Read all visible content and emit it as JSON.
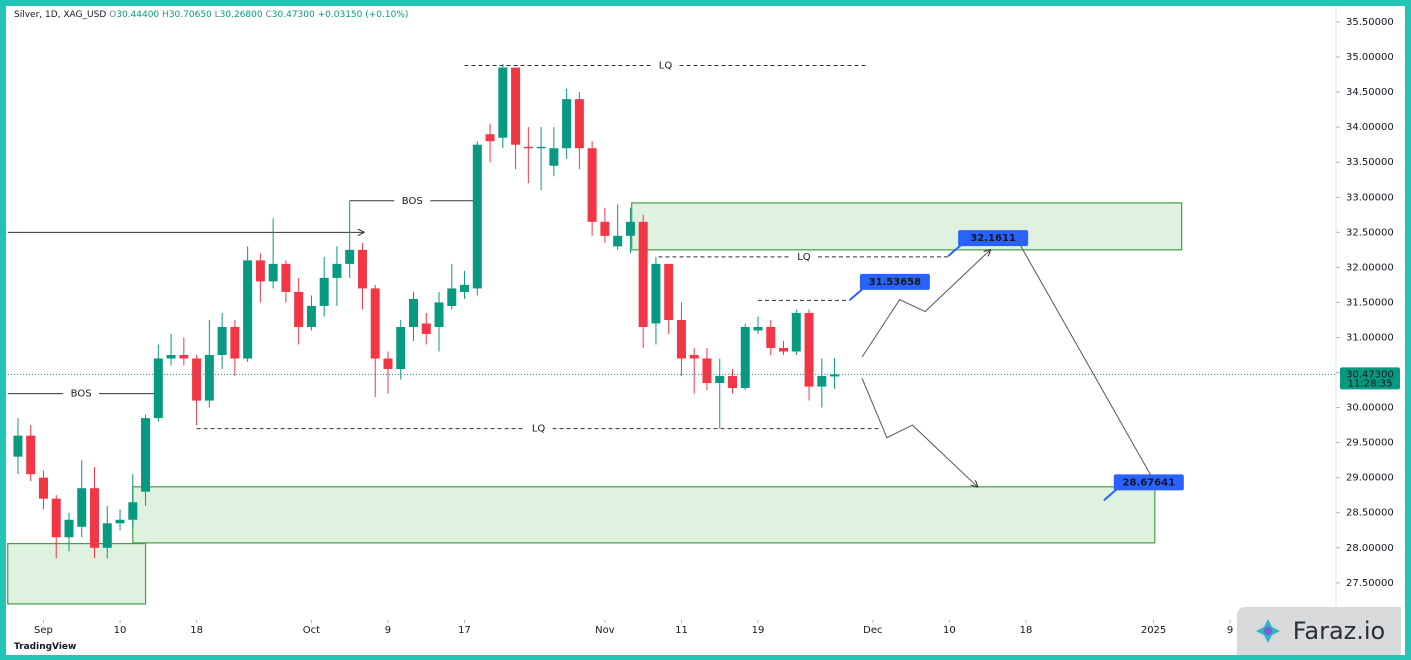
{
  "header": {
    "symbol": "Silver, 1D, XAG_USD",
    "ohlc": [
      [
        "O",
        "30.44400"
      ],
      [
        "H",
        "30.70650"
      ],
      [
        "L",
        "30.26800"
      ],
      [
        "C",
        "30.47300"
      ]
    ],
    "change": "+0.03150 (+0.10%)"
  },
  "brand": "TradingView",
  "watermark": "Faraz.io",
  "chart_data": {
    "type": "candlestick",
    "up_color": "#089981",
    "down_color": "#f23645",
    "x": [
      -8,
      -7,
      -6,
      -5,
      -4,
      -3,
      -2,
      -1,
      0,
      1,
      2,
      3,
      4,
      5,
      6,
      7,
      8,
      9,
      10,
      11,
      12,
      13,
      14,
      15,
      16,
      17,
      18,
      19,
      20,
      21,
      22,
      23,
      24,
      25,
      26,
      27,
      28,
      29,
      30,
      31,
      32,
      33,
      34,
      35,
      36,
      37,
      38,
      39,
      40,
      41,
      42,
      43,
      44,
      45,
      46,
      47,
      48,
      49,
      50,
      51,
      52,
      53,
      54,
      55,
      56
    ],
    "open": [
      29.3,
      29.6,
      29.0,
      28.7,
      28.15,
      28.3,
      28.85,
      28.0,
      28.35,
      28.4,
      28.8,
      29.85,
      30.7,
      30.75,
      30.7,
      30.1,
      30.75,
      31.15,
      30.7,
      32.1,
      31.8,
      32.05,
      31.65,
      31.15,
      31.45,
      31.85,
      32.05,
      32.25,
      31.7,
      30.7,
      30.55,
      31.15,
      31.2,
      31.15,
      31.45,
      31.65,
      31.7,
      33.9,
      33.85,
      34.85,
      33.72,
      33.7,
      33.45,
      33.7,
      34.4,
      33.7,
      32.65,
      32.3,
      32.45,
      32.65,
      31.2,
      32.05,
      31.25,
      30.75,
      30.7,
      30.35,
      30.45,
      30.28,
      31.1,
      31.15,
      30.85,
      30.8,
      31.35,
      30.3,
      30.444
    ],
    "high": [
      29.85,
      29.75,
      29.1,
      28.75,
      28.5,
      29.25,
      29.15,
      28.6,
      28.55,
      29.05,
      29.9,
      30.9,
      31.05,
      31.0,
      30.75,
      31.25,
      31.35,
      31.25,
      32.3,
      32.2,
      32.7,
      32.1,
      31.85,
      31.6,
      32.15,
      32.3,
      32.95,
      32.35,
      31.75,
      30.8,
      31.25,
      31.65,
      31.35,
      31.65,
      32.05,
      31.95,
      33.8,
      34.05,
      34.9,
      34.85,
      34.0,
      34.0,
      34.0,
      34.55,
      34.5,
      33.8,
      32.85,
      32.9,
      32.85,
      32.75,
      32.15,
      32.05,
      31.5,
      30.85,
      30.85,
      30.7,
      30.55,
      31.2,
      31.3,
      31.25,
      30.95,
      31.4,
      31.4,
      30.7,
      30.7065
    ],
    "low": [
      29.05,
      28.95,
      28.55,
      27.85,
      27.95,
      28.15,
      27.85,
      27.85,
      28.25,
      28.3,
      28.6,
      29.8,
      30.6,
      30.6,
      29.75,
      30.0,
      30.55,
      30.45,
      30.65,
      31.5,
      31.7,
      31.5,
      30.9,
      31.1,
      31.3,
      31.45,
      31.85,
      31.4,
      30.15,
      30.2,
      30.4,
      30.95,
      30.9,
      30.8,
      31.4,
      31.55,
      31.6,
      33.5,
      33.7,
      33.4,
      33.2,
      33.1,
      33.3,
      33.55,
      33.4,
      32.45,
      32.35,
      32.25,
      32.2,
      30.85,
      30.9,
      31.05,
      30.45,
      30.2,
      30.25,
      29.7,
      30.2,
      30.25,
      31.05,
      30.75,
      30.75,
      30.75,
      30.1,
      30.0,
      30.268
    ],
    "close": [
      29.6,
      29.05,
      28.7,
      28.15,
      28.4,
      28.85,
      28.0,
      28.35,
      28.4,
      28.65,
      29.85,
      30.7,
      30.75,
      30.7,
      30.1,
      30.75,
      31.15,
      30.7,
      32.1,
      31.8,
      32.05,
      31.65,
      31.15,
      31.45,
      31.85,
      32.05,
      32.25,
      31.7,
      30.7,
      30.55,
      31.15,
      31.55,
      31.05,
      31.5,
      31.7,
      31.75,
      33.75,
      33.8,
      34.85,
      33.75,
      33.7,
      33.72,
      33.7,
      34.4,
      33.7,
      32.65,
      32.45,
      32.45,
      32.65,
      31.15,
      32.05,
      31.25,
      30.7,
      30.7,
      30.35,
      30.45,
      30.28,
      31.15,
      31.15,
      30.85,
      30.8,
      31.35,
      30.3,
      30.45,
      30.473
    ],
    "xlim": [
      -8.78,
      95.22
    ],
    "xticks": [
      {
        "value": -6,
        "label": "Sep"
      },
      {
        "value": 0,
        "label": "10"
      },
      {
        "value": 6,
        "label": "18"
      },
      {
        "value": 15,
        "label": "Oct"
      },
      {
        "value": 21,
        "label": "9"
      },
      {
        "value": 27,
        "label": "17"
      },
      {
        "value": 38,
        "label": "Nov"
      },
      {
        "value": 44,
        "label": "11"
      },
      {
        "value": 50,
        "label": "19"
      },
      {
        "value": 59,
        "label": "Dec"
      },
      {
        "value": 65,
        "label": "10"
      },
      {
        "value": 71,
        "label": "18"
      },
      {
        "value": 81,
        "label": "2025"
      },
      {
        "value": 87,
        "label": "9"
      }
    ],
    "ylim": [
      26.97,
      35.7
    ],
    "yticks": [
      {
        "value": 27.5,
        "label": "27.50000"
      },
      {
        "value": 28,
        "label": "28.00000"
      },
      {
        "value": 28.5,
        "label": "28.50000"
      },
      {
        "value": 29,
        "label": "29.00000"
      },
      {
        "value": 29.5,
        "label": "29.50000"
      },
      {
        "value": 30,
        "label": "30.00000"
      },
      {
        "value": 30.5,
        "label": "30.50000"
      },
      {
        "value": 31,
        "label": "31.00000"
      },
      {
        "value": 31.5,
        "label": "31.50000"
      },
      {
        "value": 32,
        "label": "32.00000"
      },
      {
        "value": 32.5,
        "label": "32.50000"
      },
      {
        "value": 33,
        "label": "33.00000"
      },
      {
        "value": 33.5,
        "label": "33.50000"
      },
      {
        "value": 34,
        "label": "34.00000"
      },
      {
        "value": 34.5,
        "label": "34.50000"
      },
      {
        "value": 35,
        "label": "35.00000"
      },
      {
        "value": 35.5,
        "label": "35.50000"
      }
    ],
    "current_price": {
      "value": 30.473,
      "label": "30.47300"
    },
    "countdown": "11:28:35",
    "zones": [
      {
        "x": [
          -8.8,
          2.0
        ],
        "y": [
          27.2,
          28.06
        ]
      },
      {
        "x": [
          1.0,
          81.1
        ],
        "y": [
          28.07,
          28.87
        ]
      },
      {
        "x": [
          40.1,
          83.2
        ],
        "y": [
          32.25,
          32.92
        ]
      }
    ],
    "levels": [
      {
        "label": "LQ",
        "price": 34.88,
        "x": [
          27,
          58.5
        ],
        "dashed": true
      },
      {
        "label": "LQ",
        "price": 32.15,
        "x": [
          42.2,
          65
        ],
        "dashed": true
      },
      {
        "price": 31.53,
        "x": [
          50,
          57.2
        ],
        "dashed": true
      },
      {
        "label": "LQ",
        "price": 29.7,
        "x": [
          6,
          59.6
        ],
        "dashed": true
      },
      {
        "label": "BOS",
        "price": 32.95,
        "x": [
          18,
          27.8
        ],
        "dashed": false
      },
      {
        "label": "BOS",
        "price": 30.2,
        "x": [
          -8.8,
          2.7
        ],
        "dashed": false
      },
      {
        "price": 32.5,
        "x": [
          -8.8,
          19.1
        ],
        "dashed": false,
        "arrow": true
      }
    ],
    "paths": [
      {
        "x": [
          58.15,
          61.1,
          63.1,
          68.2
        ],
        "y": [
          30.72,
          31.54,
          31.37,
          32.25
        ]
      },
      {
        "x": [
          58.15,
          60.1,
          62.1,
          67.2
        ],
        "y": [
          30.42,
          29.57,
          29.75,
          28.87
        ]
      },
      {
        "x": [
          70.2,
          81.3
        ],
        "y": [
          32.43,
          28.87
        ]
      }
    ],
    "price_labels": [
      {
        "value": 31.53658,
        "label": "31.53658",
        "x": 57.2
      },
      {
        "value": 32.16111,
        "label": "32.1611",
        "x": 64.9
      },
      {
        "value": 28.67641,
        "label": "28.67641",
        "x": 77.1
      }
    ]
  }
}
